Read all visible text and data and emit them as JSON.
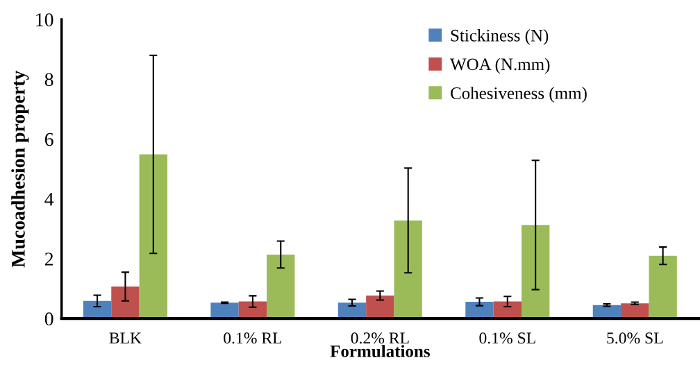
{
  "chart_data": {
    "type": "bar",
    "xlabel": "Formulations",
    "ylabel": "Mucoadhesion property",
    "categories": [
      "BLK",
      "0.1% RL",
      "0.2% RL",
      "0.1% SL",
      "5.0% SL"
    ],
    "series": [
      {
        "name": "Stickiness (N)",
        "color": "#4f81bd",
        "values": [
          0.59,
          0.53,
          0.53,
          0.56,
          0.45
        ],
        "errors": [
          0.19,
          0.02,
          0.11,
          0.13,
          0.04
        ]
      },
      {
        "name": "WOA (N.mm)",
        "color": "#c0504d",
        "values": [
          1.07,
          0.57,
          0.77,
          0.57,
          0.51
        ],
        "errors": [
          0.48,
          0.19,
          0.15,
          0.17,
          0.04
        ]
      },
      {
        "name": "Cohesiveness (mm)",
        "color": "#9bbb59",
        "values": [
          5.49,
          2.14,
          3.28,
          3.13,
          2.1
        ],
        "errors": [
          3.31,
          0.45,
          1.75,
          2.16,
          0.29
        ]
      }
    ],
    "ylim": [
      0,
      10
    ],
    "yticks": [
      0,
      2,
      4,
      6,
      8,
      10
    ],
    "grid": false,
    "legend": "top right"
  }
}
